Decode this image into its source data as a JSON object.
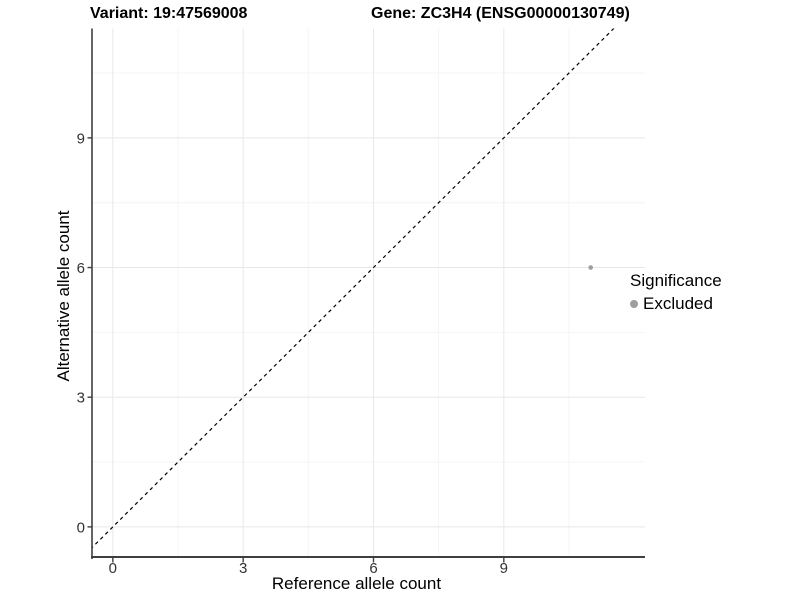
{
  "chart_data": {
    "type": "scatter",
    "title_variant": "Variant: 19:47569008",
    "title_gene": "Gene: ZC3H4 (ENSG00000130749)",
    "xlabel": "Reference allele count",
    "ylabel": "Alternative allele count",
    "xlim": [
      -0.48,
      12.25
    ],
    "ylim": [
      -0.72,
      11.53
    ],
    "x_ticks": [
      0,
      3,
      6,
      9
    ],
    "y_ticks": [
      0,
      3,
      6,
      9
    ],
    "x_minor_gridlines": [
      1.5,
      4.5,
      7.5,
      10.5
    ],
    "y_minor_gridlines": [
      1.5,
      4.5,
      7.5,
      10.5
    ],
    "grid": true,
    "points": [
      {
        "x": 11,
        "y": 6,
        "series": "Excluded"
      }
    ],
    "identity_line": {
      "type": "y=x",
      "style": "dashed",
      "color": "#000000"
    },
    "legend": {
      "position": "right",
      "title": "Significance",
      "items": [
        {
          "label": "Excluded",
          "color": "#9e9e9e"
        }
      ]
    },
    "colors": {
      "point": "#9e9e9e",
      "grid_major": "#e8e8e8",
      "grid_minor": "#f4f4f4",
      "axis": "#3f3f3f",
      "tick_label": "#333333",
      "background": "#ffffff"
    }
  }
}
